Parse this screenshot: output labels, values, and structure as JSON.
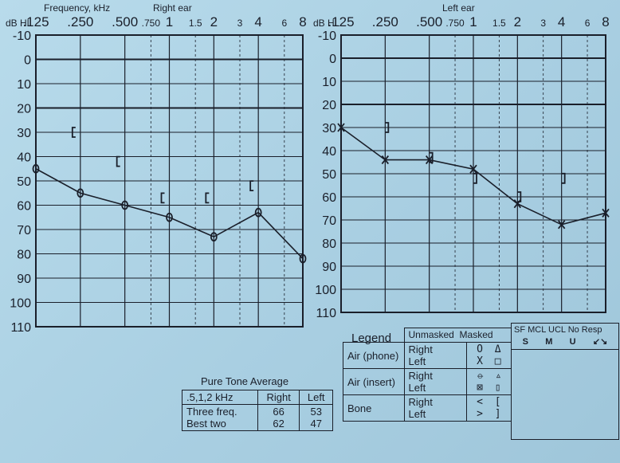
{
  "header": {
    "ylabel": "dB HL",
    "frequency_label": "Frequency, kHz",
    "right_title": "Right  ear",
    "left_title": "Left  ear"
  },
  "chart_data": [
    {
      "type": "line",
      "title": "Right  ear",
      "xlabel": "Frequency, kHz",
      "ylabel": "dB HL",
      "x_ticks": [
        ".125",
        ".250",
        ".500",
        ".750",
        "1",
        "1.5",
        "2",
        "3",
        "4",
        "6",
        "8"
      ],
      "y_ticks": [
        "-10",
        "0",
        "10",
        "20",
        "30",
        "40",
        "50",
        "60",
        "70",
        "80",
        "90",
        "100",
        "110"
      ],
      "ylim": [
        -10,
        110
      ],
      "y_inverted": true,
      "grid": true,
      "series": [
        {
          "name": "Air (phone)",
          "symbol": "O",
          "x": [
            0.125,
            0.25,
            0.5,
            1,
            2,
            4,
            8
          ],
          "values": [
            45,
            55,
            60,
            65,
            73,
            63,
            82
          ]
        },
        {
          "name": "Bone",
          "symbol": "[",
          "x": [
            0.25,
            0.5,
            1,
            2,
            4
          ],
          "values": [
            30,
            42,
            57,
            57,
            52
          ]
        }
      ]
    },
    {
      "type": "line",
      "title": "Left  ear",
      "xlabel": "Frequency, kHz",
      "ylabel": "dB HL",
      "x_ticks": [
        ".125",
        ".250",
        ".500",
        ".750",
        "1",
        "1.5",
        "2",
        "3",
        "4",
        "6",
        "8"
      ],
      "y_ticks": [
        "-10",
        "0",
        "10",
        "20",
        "30",
        "40",
        "50",
        "60",
        "70",
        "80",
        "90",
        "100",
        "110"
      ],
      "ylim": [
        -10,
        110
      ],
      "y_inverted": true,
      "grid": true,
      "series": [
        {
          "name": "Air (phone)",
          "symbol": "X",
          "x": [
            0.125,
            0.25,
            0.5,
            1,
            2,
            4,
            8
          ],
          "values": [
            30,
            44,
            44,
            48,
            63,
            72,
            67
          ]
        },
        {
          "name": "Bone",
          "symbol": "]",
          "x": [
            0.25,
            0.5,
            1,
            2,
            4
          ],
          "values": [
            30,
            43,
            52,
            60,
            52
          ]
        }
      ]
    }
  ],
  "pta": {
    "title": "Pure Tone  Average",
    "freq_label": ".5,1,2 kHz",
    "col_right": "Right",
    "col_left": "Left",
    "rows": [
      {
        "label": "Three freq.",
        "right": "66",
        "left": "53"
      },
      {
        "label": "Best two",
        "right": "62",
        "left": "47"
      }
    ]
  },
  "legend": {
    "title": "Legend",
    "unmasked": "Unmasked",
    "masked": "Masked",
    "rows": [
      {
        "label": "Air (phone)",
        "right": "Right",
        "left": "Left",
        "right_unmasked": "O",
        "left_unmasked": "X",
        "right_masked": "Δ",
        "left_masked": "□"
      },
      {
        "label": "Air (insert)",
        "right": "Right",
        "left": "Left",
        "right_unmasked": "⦵",
        "left_unmasked": "⊠",
        "right_masked": "▵",
        "left_masked": "▯"
      },
      {
        "label": "Bone",
        "right": "Right",
        "left": "Left",
        "right_unmasked": "<",
        "left_unmasked": ">",
        "right_masked": "[",
        "left_masked": "]"
      }
    ],
    "extra": {
      "sf": "SF",
      "mcl": "MCL",
      "ucl": "UCL",
      "no_resp": "No Resp",
      "sf_sym": "S",
      "mcl_sym": "M",
      "ucl_sym": "U",
      "no_resp_sym": "↙↘"
    }
  }
}
